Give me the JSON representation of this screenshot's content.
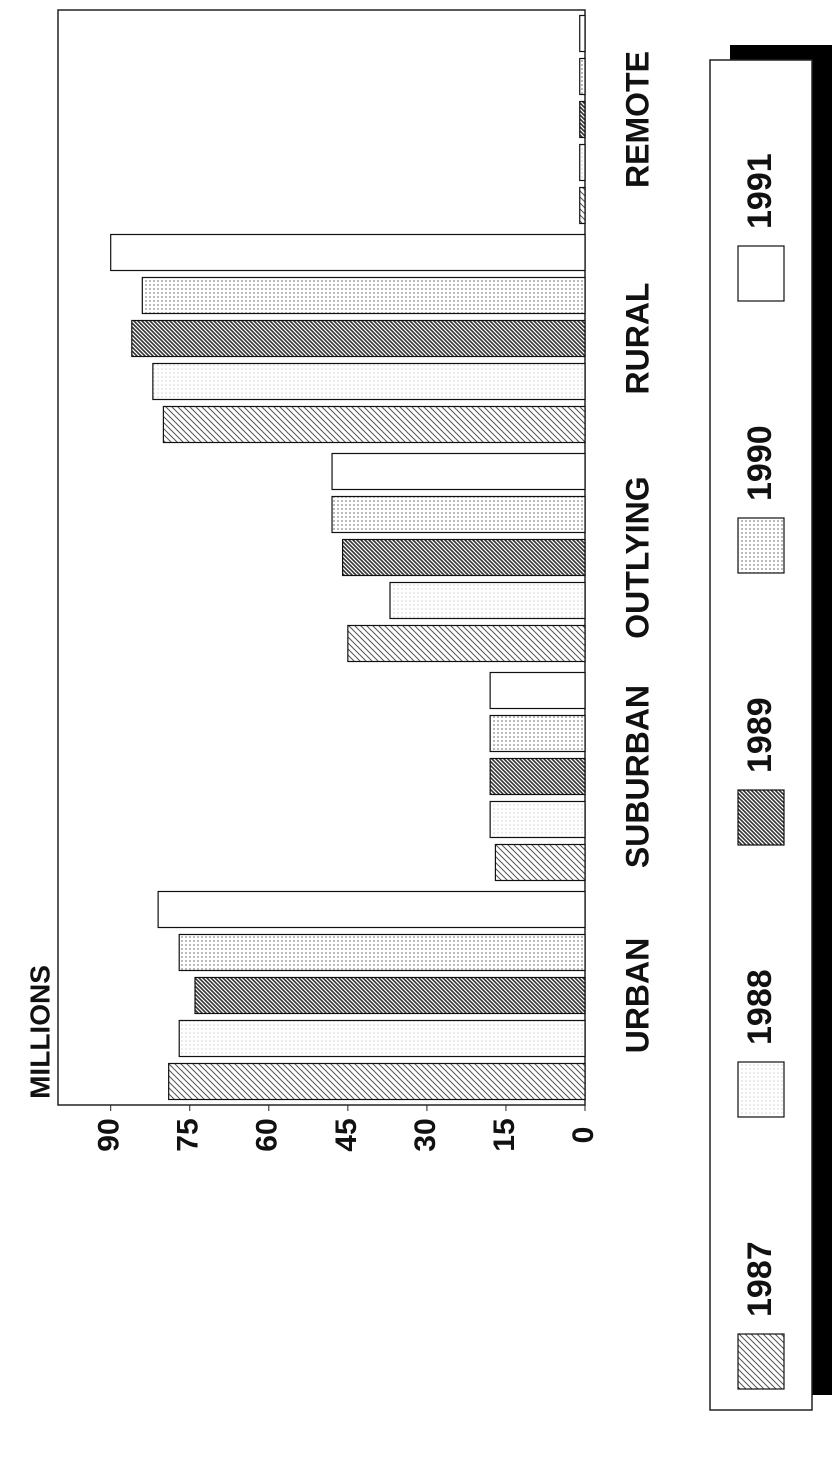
{
  "chart_data": {
    "type": "bar",
    "y_label": "MILLIONS",
    "categories": [
      "URBAN",
      "SUBURBAN",
      "OUTLYING",
      "RURAL",
      "REMOTE"
    ],
    "series": [
      {
        "name": "1987",
        "color": "#555",
        "pattern": "hatch",
        "values": [
          79,
          17,
          45,
          80,
          1
        ]
      },
      {
        "name": "1988",
        "color": "#ddd",
        "pattern": "dots",
        "values": [
          77,
          18,
          37,
          82,
          1
        ]
      },
      {
        "name": "1989",
        "color": "#333",
        "pattern": "dense-hatch",
        "values": [
          74,
          18,
          46,
          86,
          1
        ]
      },
      {
        "name": "1990",
        "color": "#888",
        "pattern": "dots",
        "values": [
          77,
          18,
          48,
          84,
          1
        ]
      },
      {
        "name": "1991",
        "color": "#fff",
        "pattern": "none",
        "values": [
          81,
          18,
          48,
          90,
          1
        ]
      }
    ],
    "ylim": [
      0,
      100
    ],
    "yticks": [
      0,
      15,
      30,
      45,
      60,
      75,
      90
    ],
    "grid": false
  }
}
